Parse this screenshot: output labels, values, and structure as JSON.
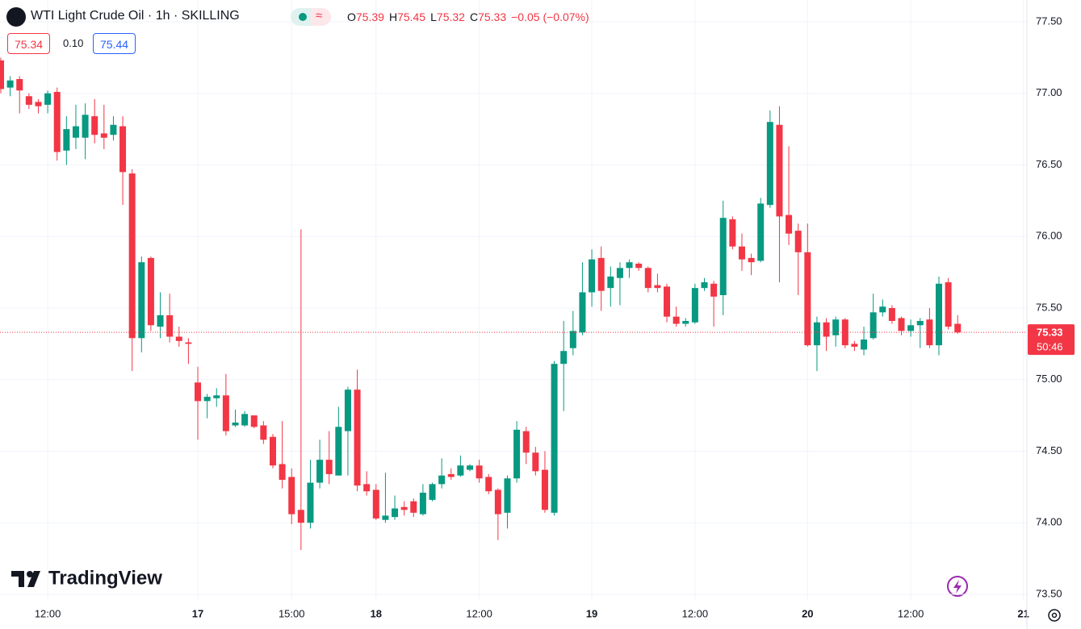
{
  "header": {
    "symbol": "WTI Light Crude Oil · 1h · SKILLING",
    "ohlc_letters": [
      "O",
      "H",
      "L",
      "C"
    ],
    "change": "−0.05 (−0.07%)",
    "sell": "75.34",
    "spread": "0.10",
    "buy": "75.44",
    "countdown": "50:46",
    "brand": "TradingView"
  },
  "chart_data": {
    "type": "candlestick",
    "categories": [
      null,
      null,
      null,
      null,
      null,
      "12:00",
      null,
      null,
      null,
      null,
      null,
      null,
      null,
      null,
      null,
      null,
      null,
      null,
      null,
      null,
      null,
      "17",
      null,
      null,
      null,
      null,
      null,
      null,
      null,
      null,
      null,
      "15:00",
      null,
      null,
      null,
      null,
      null,
      null,
      null,
      null,
      "18",
      null,
      null,
      null,
      null,
      null,
      null,
      null,
      null,
      null,
      null,
      "12:00",
      null,
      null,
      null,
      null,
      null,
      null,
      null,
      null,
      null,
      null,
      null,
      "19",
      null,
      null,
      null,
      null,
      null,
      null,
      null,
      null,
      null,
      null,
      "12:00",
      null,
      null,
      null,
      null,
      null,
      null,
      null,
      null,
      null,
      null,
      null,
      "20",
      null,
      null,
      null,
      null,
      null,
      null,
      null,
      null,
      null,
      null,
      "12:00",
      null,
      null,
      null,
      null,
      null,
      null,
      null,
      null,
      null,
      null,
      null,
      "21"
    ],
    "open": [
      77.23,
      77.04,
      77.1,
      76.98,
      76.94,
      76.92,
      77.01,
      76.6,
      76.69,
      76.69,
      76.84,
      76.72,
      76.71,
      76.77,
      76.44,
      75.29,
      75.85,
      75.37,
      75.45,
      75.3,
      75.26,
      74.98,
      74.85,
      74.87,
      74.89,
      74.68,
      74.68,
      74.75,
      74.68,
      74.6,
      74.41,
      74.32,
      74.09,
      74.0,
      74.28,
      74.44,
      74.33,
      74.64,
      74.93,
      74.27,
      74.23,
      74.02,
      74.04,
      74.11,
      74.15,
      74.06,
      74.16,
      74.27,
      74.34,
      74.33,
      74.37,
      74.4,
      74.32,
      74.23,
      74.07,
      74.31,
      74.64,
      74.49,
      74.37,
      74.07,
      75.11,
      75.22,
      75.33,
      75.61,
      75.85,
      75.64,
      75.71,
      75.78,
      75.81,
      75.78,
      75.66,
      75.65,
      75.44,
      75.39,
      75.4,
      75.64,
      75.67,
      75.59,
      76.12,
      75.93,
      75.85,
      75.83,
      76.22,
      76.78,
      76.15,
      76.04,
      75.89,
      75.24,
      75.4,
      75.31,
      75.42,
      75.25,
      75.21,
      75.29,
      75.47,
      75.5,
      75.43,
      75.34,
      75.38,
      75.42,
      75.24,
      75.68,
      75.39,
      null,
      null,
      null,
      null,
      null,
      null,
      null
    ],
    "high": [
      77.25,
      77.12,
      77.12,
      77.0,
      76.96,
      77.02,
      77.04,
      76.84,
      76.92,
      76.93,
      76.96,
      76.92,
      76.84,
      76.84,
      76.47,
      75.86,
      75.86,
      75.61,
      75.6,
      75.37,
      75.29,
      75.09,
      74.9,
      74.94,
      75.04,
      74.79,
      74.78,
      74.75,
      74.71,
      74.62,
      74.71,
      74.38,
      76.05,
      74.44,
      74.58,
      74.64,
      74.81,
      74.95,
      75.07,
      74.36,
      74.27,
      74.35,
      74.19,
      74.15,
      74.17,
      74.27,
      74.28,
      74.45,
      74.38,
      74.47,
      74.41,
      74.44,
      74.34,
      74.24,
      74.33,
      74.71,
      74.67,
      74.53,
      74.5,
      75.13,
      75.41,
      75.48,
      75.82,
      75.91,
      75.93,
      75.79,
      75.82,
      75.84,
      75.82,
      75.79,
      75.74,
      75.67,
      75.51,
      75.43,
      75.67,
      75.71,
      75.69,
      76.25,
      76.14,
      76.02,
      75.88,
      76.27,
      76.88,
      76.91,
      76.63,
      76.09,
      76.09,
      75.44,
      75.43,
      75.44,
      75.43,
      75.27,
      75.37,
      75.6,
      75.56,
      75.52,
      75.44,
      75.42,
      75.43,
      75.5,
      75.72,
      75.71,
      75.45,
      null,
      null,
      null,
      null,
      null,
      null,
      null
    ],
    "low": [
      77.0,
      76.98,
      76.86,
      76.89,
      76.86,
      76.86,
      76.53,
      76.5,
      76.61,
      76.54,
      76.65,
      76.61,
      76.67,
      76.22,
      75.06,
      75.19,
      75.34,
      75.29,
      75.26,
      75.23,
      75.11,
      74.58,
      74.73,
      74.81,
      74.61,
      74.67,
      74.67,
      74.66,
      74.55,
      74.38,
      74.24,
      73.99,
      73.81,
      73.96,
      74.24,
      74.27,
      74.33,
      74.33,
      74.22,
      74.19,
      74.02,
      74.0,
      74.02,
      74.05,
      74.04,
      74.05,
      74.15,
      74.24,
      74.3,
      74.32,
      74.36,
      74.28,
      74.2,
      73.88,
      73.96,
      74.28,
      74.41,
      74.33,
      74.07,
      74.05,
      74.78,
      75.17,
      75.31,
      75.51,
      75.48,
      75.51,
      75.52,
      75.71,
      75.76,
      75.61,
      75.61,
      75.4,
      75.37,
      75.37,
      75.39,
      75.62,
      75.37,
      75.45,
      75.91,
      75.76,
      75.73,
      75.82,
      76.2,
      75.68,
      75.94,
      75.59,
      75.23,
      75.06,
      75.2,
      75.23,
      75.22,
      75.2,
      75.17,
      75.28,
      75.44,
      75.39,
      75.31,
      75.3,
      75.22,
      75.22,
      75.17,
      75.35,
      75.32,
      null,
      null,
      null,
      null,
      null,
      null,
      null
    ],
    "close": [
      77.03,
      77.09,
      77.02,
      76.92,
      76.91,
      77.0,
      76.59,
      76.75,
      76.77,
      76.85,
      76.71,
      76.69,
      76.78,
      76.45,
      75.29,
      75.82,
      75.38,
      75.45,
      75.3,
      75.27,
      75.25,
      74.85,
      74.88,
      74.89,
      74.64,
      74.7,
      74.76,
      74.67,
      74.58,
      74.4,
      74.3,
      74.06,
      74.0,
      74.28,
      74.44,
      74.34,
      74.67,
      74.93,
      74.26,
      74.22,
      74.03,
      74.05,
      74.1,
      74.09,
      74.07,
      74.21,
      74.27,
      74.33,
      74.32,
      74.4,
      74.4,
      74.31,
      74.22,
      74.06,
      74.31,
      74.65,
      74.49,
      74.36,
      74.09,
      75.11,
      75.2,
      75.34,
      75.61,
      75.84,
      75.62,
      75.72,
      75.78,
      75.82,
      75.78,
      75.64,
      75.64,
      75.44,
      75.39,
      75.41,
      75.64,
      75.68,
      75.58,
      76.13,
      75.93,
      75.84,
      75.82,
      76.23,
      76.8,
      76.14,
      76.02,
      75.89,
      75.24,
      75.4,
      75.3,
      75.42,
      75.24,
      75.23,
      75.28,
      75.47,
      75.51,
      75.41,
      75.34,
      75.38,
      75.41,
      75.24,
      75.67,
      75.37,
      75.33,
      null,
      null,
      null,
      null,
      null,
      null,
      null
    ],
    "up_color": "#089981",
    "down_color": "#f23645",
    "ylim": [
      73.455,
      77.652
    ],
    "yticks": [
      {
        "value": 73.5,
        "label": "73.50"
      },
      {
        "value": 74,
        "label": "74.00"
      },
      {
        "value": 74.5,
        "label": "74.50"
      },
      {
        "value": 75,
        "label": "75.00"
      },
      {
        "value": 75.5,
        "label": "75.50"
      },
      {
        "value": 76,
        "label": "76.00"
      },
      {
        "value": 76.5,
        "label": "76.50"
      },
      {
        "value": 77,
        "label": "77.00"
      },
      {
        "value": 77.5,
        "label": "77.50"
      }
    ],
    "grid": true
  }
}
